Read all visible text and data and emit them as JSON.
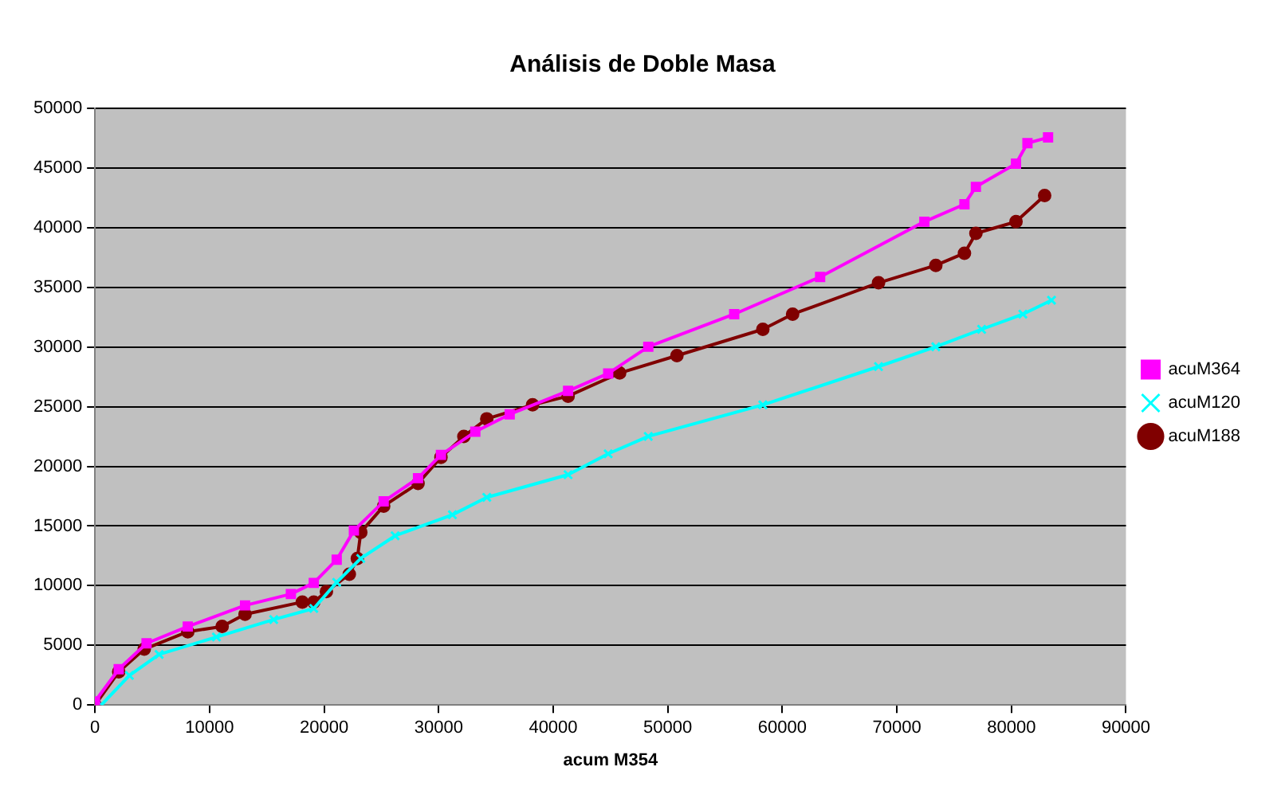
{
  "chart_data": {
    "type": "line",
    "title": "Análisis de Doble Masa",
    "xlabel": "acum M354",
    "xlim": [
      0,
      90000
    ],
    "xticks": [
      0,
      10000,
      20000,
      30000,
      40000,
      50000,
      60000,
      70000,
      80000,
      90000
    ],
    "ylim": [
      0,
      50000
    ],
    "yticks": [
      0,
      5000,
      10000,
      15000,
      20000,
      25000,
      30000,
      35000,
      40000,
      45000,
      50000
    ],
    "grid": "y",
    "legend": "right",
    "line_style": "solid",
    "series": [
      {
        "name": "acuM364",
        "color": "#ff00ff",
        "marker": "square",
        "x": [
          0,
          2070,
          4500,
          8100,
          13100,
          17100,
          19100,
          21100,
          22600,
          25200,
          28200,
          30200,
          33200,
          36200,
          41300,
          44800,
          48300,
          55800,
          63300,
          72400,
          75900,
          76900,
          80400,
          81400,
          83200
        ],
        "values": [
          300,
          3000,
          5170,
          6580,
          8350,
          9300,
          10230,
          12180,
          14620,
          17060,
          19010,
          20960,
          22900,
          24360,
          26320,
          27780,
          30020,
          32750,
          35870,
          40500,
          41960,
          43420,
          45360,
          47080,
          47560
        ]
      },
      {
        "name": "acuM120",
        "color": "#00ffff",
        "marker": "cross",
        "x": [
          550,
          3000,
          5600,
          10600,
          15600,
          19100,
          21100,
          23200,
          26200,
          31200,
          34200,
          41300,
          44800,
          48300,
          58300,
          68400,
          73400,
          77400,
          81000,
          83500
        ],
        "values": [
          0,
          2480,
          4240,
          5700,
          7160,
          8090,
          10280,
          12280,
          14180,
          15940,
          17400,
          19300,
          21050,
          22510,
          25150,
          28360,
          30020,
          31480,
          32750,
          33920
        ]
      },
      {
        "name": "acuM188",
        "color": "#800000",
        "marker": "circle",
        "x": [
          0,
          2070,
          4300,
          8100,
          11100,
          13100,
          18100,
          19100,
          20200,
          22200,
          22900,
          23200,
          25200,
          28200,
          30200,
          32200,
          34200,
          38200,
          41300,
          45800,
          50800,
          58300,
          60900,
          68400,
          73400,
          75900,
          76900,
          80400,
          82900
        ],
        "values": [
          0,
          2780,
          4680,
          6140,
          6580,
          7600,
          8630,
          8630,
          9500,
          10960,
          12280,
          14470,
          16670,
          18570,
          20760,
          22510,
          23980,
          25150,
          25880,
          27820,
          29280,
          31480,
          32750,
          35380,
          36840,
          37860,
          39520,
          40500,
          42690
        ]
      }
    ]
  }
}
